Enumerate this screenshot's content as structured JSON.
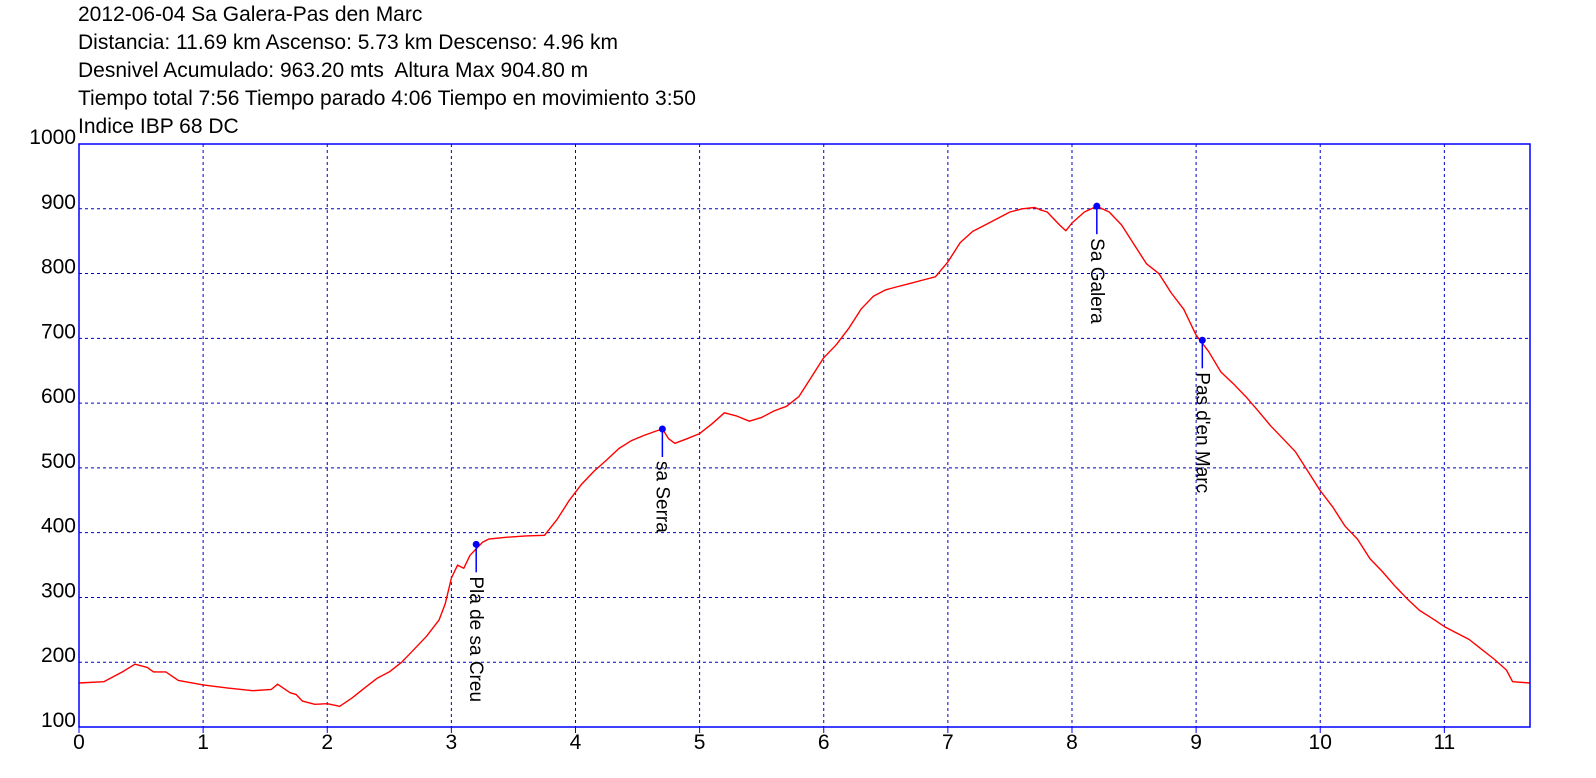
{
  "header": {
    "lines": [
      "2012-06-04 Sa Galera-Pas den Marc",
      "Distancia: 11.69 km Ascenso: 5.73 km Descenso: 4.96 km",
      "Desnivel Acumulado: 963.20 mts  Altura Max 904.80 m",
      "Tiempo total 7:56 Tiempo parado 4:06 Tiempo en movimiento 3:50",
      "Indice IBP 68 DC"
    ]
  },
  "colors": {
    "line": "#ff0000",
    "frame": "#0000ff",
    "grid": "#0000cc",
    "marker": "#0000ff"
  },
  "chart_data": {
    "type": "line",
    "title": "2012-06-04 Sa Galera-Pas den Marc",
    "xlim": [
      0,
      11.69
    ],
    "ylim": [
      100,
      1000
    ],
    "x_ticks": [
      "0",
      "1",
      "2",
      "3",
      "4",
      "5",
      "6",
      "7",
      "8",
      "9",
      "10",
      "11"
    ],
    "y_ticks": [
      "100",
      "200",
      "300",
      "400",
      "500",
      "600",
      "700",
      "800",
      "900",
      "1000"
    ],
    "grid": true,
    "series": [
      {
        "points": [
          [
            0,
            168
          ],
          [
            0.2,
            170
          ],
          [
            0.35,
            185
          ],
          [
            0.45,
            197
          ],
          [
            0.55,
            192
          ],
          [
            0.6,
            185
          ],
          [
            0.7,
            185
          ],
          [
            0.8,
            172
          ],
          [
            1.0,
            165
          ],
          [
            1.2,
            160
          ],
          [
            1.4,
            156
          ],
          [
            1.55,
            158
          ],
          [
            1.6,
            166
          ],
          [
            1.7,
            153
          ],
          [
            1.75,
            150
          ],
          [
            1.8,
            140
          ],
          [
            1.9,
            135
          ],
          [
            2.0,
            136
          ],
          [
            2.1,
            132
          ],
          [
            2.2,
            145
          ],
          [
            2.3,
            160
          ],
          [
            2.4,
            175
          ],
          [
            2.5,
            185
          ],
          [
            2.6,
            200
          ],
          [
            2.7,
            220
          ],
          [
            2.8,
            240
          ],
          [
            2.9,
            265
          ],
          [
            2.95,
            290
          ],
          [
            3.0,
            330
          ],
          [
            3.05,
            350
          ],
          [
            3.1,
            345
          ],
          [
            3.15,
            365
          ],
          [
            3.2,
            375
          ],
          [
            3.25,
            385
          ],
          [
            3.3,
            390
          ],
          [
            3.45,
            393
          ],
          [
            3.6,
            395
          ],
          [
            3.75,
            396
          ],
          [
            3.85,
            420
          ],
          [
            3.95,
            450
          ],
          [
            4.05,
            475
          ],
          [
            4.15,
            495
          ],
          [
            4.25,
            512
          ],
          [
            4.35,
            530
          ],
          [
            4.45,
            542
          ],
          [
            4.55,
            550
          ],
          [
            4.65,
            557
          ],
          [
            4.7,
            560
          ],
          [
            4.75,
            545
          ],
          [
            4.8,
            538
          ],
          [
            4.9,
            545
          ],
          [
            5.0,
            553
          ],
          [
            5.1,
            568
          ],
          [
            5.2,
            585
          ],
          [
            5.3,
            580
          ],
          [
            5.4,
            572
          ],
          [
            5.5,
            578
          ],
          [
            5.6,
            588
          ],
          [
            5.7,
            595
          ],
          [
            5.8,
            610
          ],
          [
            5.9,
            640
          ],
          [
            6.0,
            670
          ],
          [
            6.1,
            690
          ],
          [
            6.2,
            715
          ],
          [
            6.3,
            745
          ],
          [
            6.4,
            765
          ],
          [
            6.5,
            775
          ],
          [
            6.6,
            780
          ],
          [
            6.7,
            785
          ],
          [
            6.8,
            790
          ],
          [
            6.9,
            795
          ],
          [
            7.0,
            818
          ],
          [
            7.1,
            848
          ],
          [
            7.2,
            865
          ],
          [
            7.3,
            875
          ],
          [
            7.4,
            885
          ],
          [
            7.5,
            895
          ],
          [
            7.6,
            900
          ],
          [
            7.7,
            902
          ],
          [
            7.75,
            898
          ],
          [
            7.8,
            895
          ],
          [
            7.9,
            875
          ],
          [
            7.95,
            866
          ],
          [
            8.0,
            878
          ],
          [
            8.1,
            895
          ],
          [
            8.2,
            904
          ],
          [
            8.3,
            895
          ],
          [
            8.4,
            875
          ],
          [
            8.5,
            845
          ],
          [
            8.6,
            815
          ],
          [
            8.7,
            800
          ],
          [
            8.8,
            770
          ],
          [
            8.9,
            745
          ],
          [
            9.0,
            705
          ],
          [
            9.1,
            680
          ],
          [
            9.2,
            648
          ],
          [
            9.3,
            630
          ],
          [
            9.4,
            610
          ],
          [
            9.5,
            588
          ],
          [
            9.6,
            565
          ],
          [
            9.7,
            545
          ],
          [
            9.8,
            525
          ],
          [
            9.9,
            495
          ],
          [
            10.0,
            465
          ],
          [
            10.1,
            440
          ],
          [
            10.2,
            410
          ],
          [
            10.3,
            390
          ],
          [
            10.4,
            360
          ],
          [
            10.5,
            340
          ],
          [
            10.6,
            318
          ],
          [
            10.7,
            298
          ],
          [
            10.8,
            280
          ],
          [
            10.9,
            268
          ],
          [
            11.0,
            255
          ],
          [
            11.1,
            245
          ],
          [
            11.2,
            235
          ],
          [
            11.3,
            220
          ],
          [
            11.4,
            205
          ],
          [
            11.5,
            188
          ],
          [
            11.55,
            170
          ],
          [
            11.69,
            168
          ]
        ]
      }
    ],
    "waypoints": [
      {
        "name": "Pla de sa Creu",
        "x": 3.2,
        "y": 382
      },
      {
        "name": "sa Serra",
        "x": 4.7,
        "y": 560
      },
      {
        "name": "Sa Galera",
        "x": 8.2,
        "y": 904
      },
      {
        "name": "Pas d'en Marc",
        "x": 9.05,
        "y": 697
      }
    ]
  }
}
